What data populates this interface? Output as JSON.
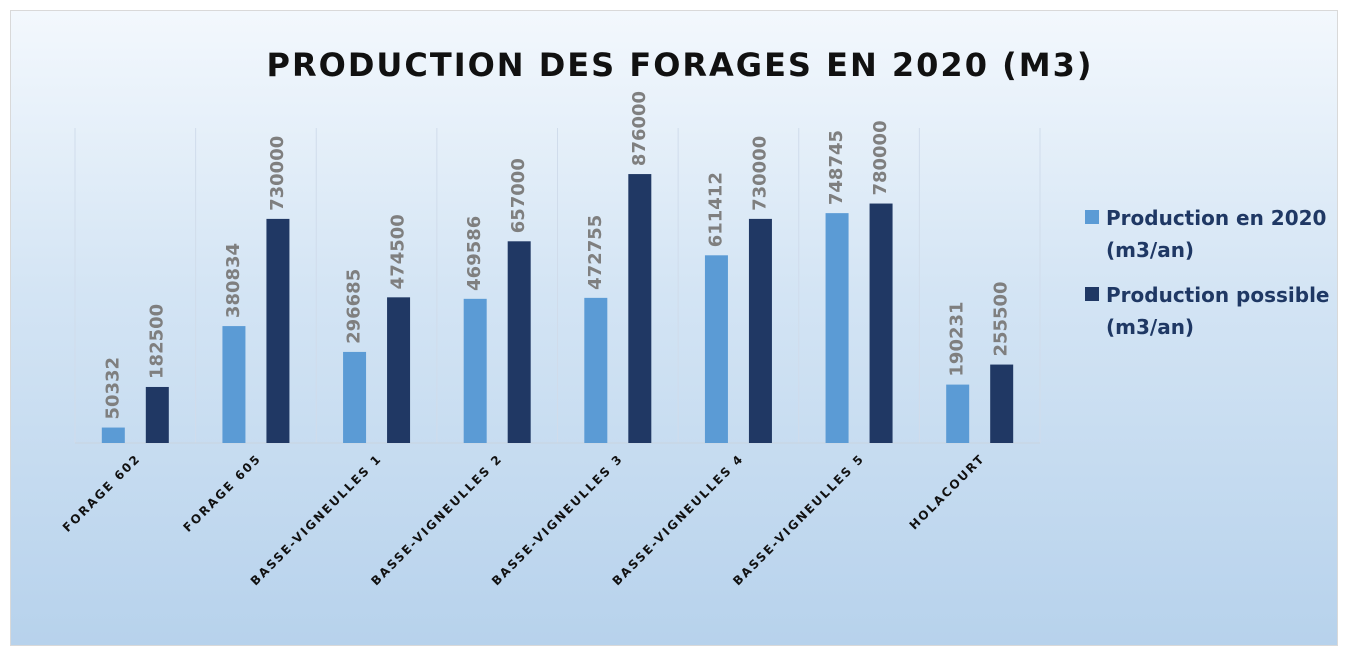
{
  "chart_data": {
    "type": "bar",
    "title": "PRODUCTION DES FORAGES EN 2020 (M3)",
    "categories": [
      "FORAGE 602",
      "FORAGE 605",
      "BASSE-VIGNEULLES 1",
      "BASSE-VIGNEULLES 2",
      "BASSE-VIGNEULLES 3",
      "BASSE-VIGNEULLES 4",
      "BASSE-VIGNEULLES 5",
      "HOLACOURT"
    ],
    "series": [
      {
        "name": "Production en 2020 (m3/an)",
        "color": "#5b9bd5",
        "values": [
          50332,
          380834,
          296685,
          469586,
          472755,
          611412,
          748745,
          190231
        ]
      },
      {
        "name": "Production possible (m3/an)",
        "color": "#203864",
        "values": [
          182500,
          730000,
          474500,
          657000,
          876000,
          730000,
          780000,
          255500
        ]
      }
    ],
    "ylim": [
      0,
      1000000
    ],
    "legend": "right"
  }
}
